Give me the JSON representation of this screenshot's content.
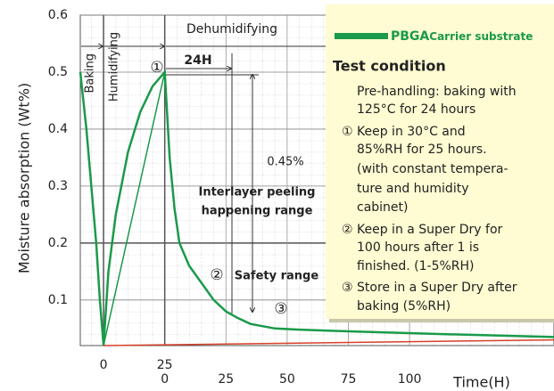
{
  "chart_data": {
    "type": "line",
    "ylabel": "Moisture absorption (Wt%)",
    "xlabel": "Time(H)",
    "xlim": [
      -9.5,
      184
    ],
    "ylim": [
      0.02,
      0.6
    ],
    "yticks": [
      0.1,
      0.2,
      0.3,
      0.4,
      0.5,
      0.6
    ],
    "xticks": [
      0,
      25
    ],
    "x2ticks": [
      {
        "value": 25,
        "label": "0"
      },
      {
        "value": 50,
        "label": "25"
      },
      {
        "value": 75,
        "label": "50"
      },
      {
        "value": 100,
        "label": "75"
      },
      {
        "value": 125,
        "label": "100"
      }
    ],
    "grid": true,
    "series": [
      {
        "color": "#1a9a4a",
        "x": [
          -9.5,
          -7,
          -5,
          -3,
          -1.5,
          0,
          2,
          5,
          10,
          15,
          20,
          25,
          27,
          29,
          31,
          35,
          40,
          45,
          50,
          55,
          60,
          70,
          80,
          100,
          140,
          184
        ],
        "values": [
          0.5,
          0.4,
          0.3,
          0.2,
          0.1,
          0.02,
          0.15,
          0.25,
          0.36,
          0.43,
          0.475,
          0.5,
          0.35,
          0.26,
          0.2,
          0.16,
          0.13,
          0.1,
          0.08,
          0.068,
          0.058,
          0.05,
          0.048,
          0.045,
          0.04,
          0.035
        ]
      },
      {
        "color": "#1a9a4a",
        "x": [
          0,
          25
        ],
        "values": [
          0.02,
          0.5
        ]
      },
      {
        "color": "#d6402a",
        "x": [
          0,
          184
        ],
        "values": [
          0.02,
          0.03
        ]
      }
    ],
    "annotations": {
      "baking": "Baking",
      "humidifying": "Humidifying",
      "dehumidifying": "Dehumidifying",
      "step1": "①",
      "hours": "24H",
      "percent": "0.45%",
      "peel1": "Interlayer peeling",
      "peel2": "happening range",
      "step2": "②",
      "safety": "Safety range",
      "step3": "③"
    },
    "legend": {
      "label_bold": "PBGA",
      "label": "Carrier substrate",
      "heading": "Test condition",
      "lines": [
        "Pre-handling: baking with",
        "125°C for 24 hours",
        "① Keep in 30°C and",
        "85%RH for 25 hours.",
        "(with constant tempera-",
        "ture and humidity",
        "cabinet)",
        "② Keep in a Super Dry for",
        "100 hours after 1 is",
        "finished. (1-5%RH)",
        "③ Store in a Super Dry after",
        "baking (5%RH)"
      ]
    }
  }
}
